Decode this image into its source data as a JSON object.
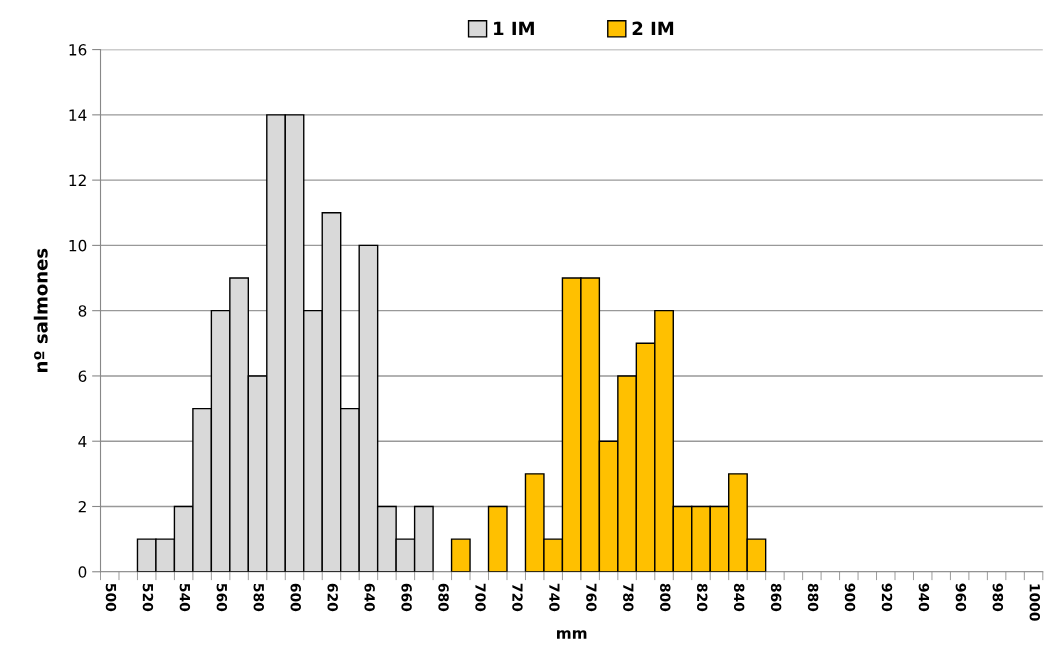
{
  "chart_data": {
    "type": "bar",
    "xlabel": "mm",
    "ylabel": "nº salmones",
    "categories": [
      "500",
      null,
      "520",
      null,
      "540",
      null,
      "560",
      null,
      "580",
      null,
      "600",
      null,
      "620",
      null,
      "640",
      null,
      "660",
      null,
      "680",
      null,
      "700",
      null,
      "720",
      null,
      "740",
      null,
      "760",
      null,
      "780",
      null,
      "800",
      null,
      "820",
      null,
      "840",
      null,
      "860",
      null,
      "880",
      null,
      "900",
      null,
      "920",
      null,
      "940",
      null,
      "960",
      null,
      "980",
      null,
      "1000"
    ],
    "series": [
      {
        "name": "1 IM",
        "color": "#d9d9d9",
        "values": [
          null,
          null,
          1,
          1,
          2,
          5,
          8,
          9,
          6,
          14,
          14,
          8,
          11,
          5,
          10,
          2,
          1,
          2,
          null,
          null,
          null,
          null,
          null,
          null,
          null,
          null,
          null,
          null,
          null,
          null,
          null,
          null,
          null,
          null,
          null,
          null,
          null,
          null,
          null,
          null,
          null,
          null,
          null,
          null,
          null,
          null,
          null,
          null,
          null,
          null,
          null
        ]
      },
      {
        "name": "2 IM",
        "color": "#ffc000",
        "values": [
          null,
          null,
          null,
          null,
          null,
          null,
          null,
          null,
          null,
          null,
          null,
          null,
          null,
          null,
          null,
          null,
          null,
          null,
          null,
          1,
          null,
          2,
          null,
          3,
          1,
          9,
          9,
          4,
          6,
          7,
          8,
          2,
          2,
          2,
          3,
          1,
          null,
          null,
          null,
          null,
          null,
          null,
          null,
          null,
          null,
          null,
          null,
          null,
          null,
          null,
          null
        ]
      }
    ],
    "ylim": [
      0,
      16
    ],
    "yticks": [
      0,
      2,
      4,
      6,
      8,
      10,
      12,
      14,
      16
    ],
    "grid": "y",
    "legend": "top"
  }
}
